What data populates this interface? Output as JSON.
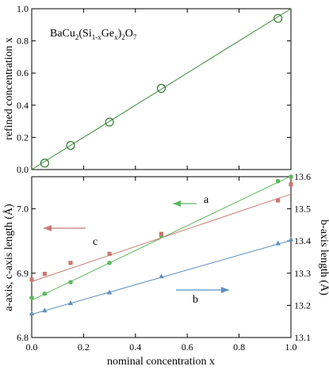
{
  "chart_data": [
    {
      "type": "line",
      "title": "",
      "formula": {
        "base": "BaCu",
        "s1": "2",
        "p1": "(Si",
        "s2": "1-x",
        "p2": "Ge",
        "s3": "x",
        "p3": ")",
        "s4": "2",
        "p4": "O",
        "s5": "7"
      },
      "xlabel": "",
      "ylabel": "refined concentration x",
      "xlim": [
        0,
        1
      ],
      "ylim": [
        0,
        1
      ],
      "yticks": [
        0,
        0.2,
        0.4,
        0.6,
        0.8,
        1.0
      ],
      "ytick_labels": [
        "0.0",
        "0.2",
        "0.4",
        "0.6",
        "0.8",
        "1.0"
      ],
      "series": [
        {
          "color": "#2e7d2e",
          "marker": "open-circle",
          "x": [
            0.05,
            0.15,
            0.3,
            0.5,
            0.95
          ],
          "y": [
            0.04,
            0.15,
            0.295,
            0.505,
            0.94
          ]
        }
      ],
      "fit_line": {
        "x": [
          0,
          1
        ],
        "y": [
          0,
          1
        ],
        "color": "#3a8a3a"
      }
    },
    {
      "type": "scatter",
      "title": "",
      "xlabel": "nominal concentration x",
      "ylabel_left": "a-axis, c-axis length (Å)",
      "ylabel_right": "b-axis length (Å)",
      "xlim": [
        0,
        1
      ],
      "ylim_left": [
        6.8,
        7.05
      ],
      "ylim_right": [
        13.1,
        13.6
      ],
      "xticks": [
        0,
        0.2,
        0.4,
        0.6,
        0.8,
        1.0
      ],
      "xtick_labels": [
        "0.0",
        "0.2",
        "0.4",
        "0.6",
        "0.8",
        "1.0"
      ],
      "yticks_left": [
        6.8,
        6.9,
        7.0
      ],
      "ytick_labels_left": [
        "6.8",
        "6.9",
        "7.0"
      ],
      "yticks_right": [
        13.1,
        13.2,
        13.3,
        13.4,
        13.5,
        13.6
      ],
      "ytick_labels_right": [
        "13.1",
        "13.2",
        "13.3",
        "13.4",
        "13.5",
        "13.6"
      ],
      "series": [
        {
          "name": "a",
          "axis": "left",
          "color": "#5cb85c",
          "marker": "circle",
          "x": [
            0,
            0.05,
            0.15,
            0.3,
            0.5,
            0.95,
            1.0
          ],
          "y": [
            6.862,
            6.868,
            6.886,
            6.916,
            6.958,
            7.043,
            7.05
          ],
          "fit": [
            6.858,
            7.051
          ]
        },
        {
          "name": "c",
          "axis": "left",
          "color": "#c87a70",
          "marker": "square",
          "x": [
            0,
            0.05,
            0.15,
            0.3,
            0.5,
            0.95,
            1.0
          ],
          "y": [
            6.89,
            6.899,
            6.916,
            6.93,
            6.961,
            7.013,
            7.038
          ],
          "fit": [
            6.887,
            7.023
          ]
        },
        {
          "name": "b",
          "axis": "right",
          "color": "#5a8fc0",
          "marker": "triangle",
          "x": [
            0,
            0.05,
            0.15,
            0.3,
            0.5,
            0.95,
            1.0
          ],
          "y": [
            13.175,
            13.184,
            13.207,
            13.24,
            13.29,
            13.393,
            13.405
          ],
          "fit": [
            13.172,
            13.402
          ]
        }
      ],
      "labels": {
        "a": "a",
        "b": "b",
        "c": "c"
      }
    }
  ],
  "colors": {
    "green_dark": "#2e7d2e",
    "green": "#5cb85c",
    "red": "#c87a70",
    "blue": "#5a8fc0"
  }
}
